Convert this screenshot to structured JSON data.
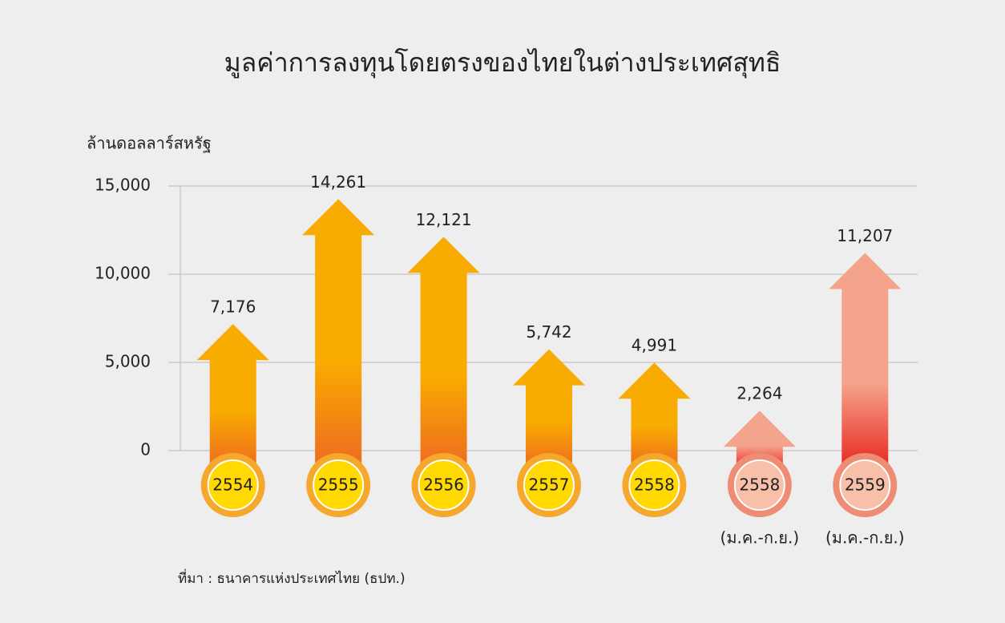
{
  "chart_data": {
    "type": "arrow-bar",
    "title": "มูลค่าการลงทุนโดยตรงของไทยในต่างประเทศสุทธิ",
    "y_label": "ล้านดอลลาร์สหรัฐ",
    "source": "ที่มา : ธนาคารแห่งประเทศไทย (ธปท.)",
    "categories": [
      "2554",
      "2555",
      "2556",
      "2557",
      "2558",
      "2558",
      "2559"
    ],
    "category_notes": [
      null,
      null,
      null,
      null,
      null,
      "(ม.ค.-ก.ย.)",
      "(ม.ค.-ก.ย.)"
    ],
    "values": [
      7176,
      14261,
      12121,
      5742,
      4991,
      2264,
      11207
    ],
    "value_labels": [
      "7,176",
      "14,261",
      "12,121",
      "5,742",
      "4,991",
      "2,264",
      "11,207"
    ],
    "colors": [
      "#f8ab00",
      "#f8ab00",
      "#f8ab00",
      "#f8ab00",
      "#f8ab00",
      "#f4a48c",
      "#f4a48c"
    ],
    "colors_bottom": [
      "#ee6a22",
      "#ee6a22",
      "#ee6a22",
      "#ee6a22",
      "#ee6a22",
      "#e8261f",
      "#e8261f"
    ],
    "circle_colors": [
      "#ffd900",
      "#ffd900",
      "#ffd900",
      "#ffd900",
      "#ffd900",
      "#f8c0a9",
      "#f8c0a9"
    ],
    "ring_colors": [
      "#f6a82c",
      "#f6a82c",
      "#f6a82c",
      "#f6a82c",
      "#f6a82c",
      "#ee8c74",
      "#ee8c74"
    ],
    "ylim": [
      0,
      15000
    ],
    "yticks": [
      0,
      {
        "value": 5000,
        "label": "5,000"
      },
      {
        "value": 10000,
        "label": "10,000"
      },
      {
        "value": 15000,
        "label": "15,000"
      }
    ],
    "grid": true
  }
}
